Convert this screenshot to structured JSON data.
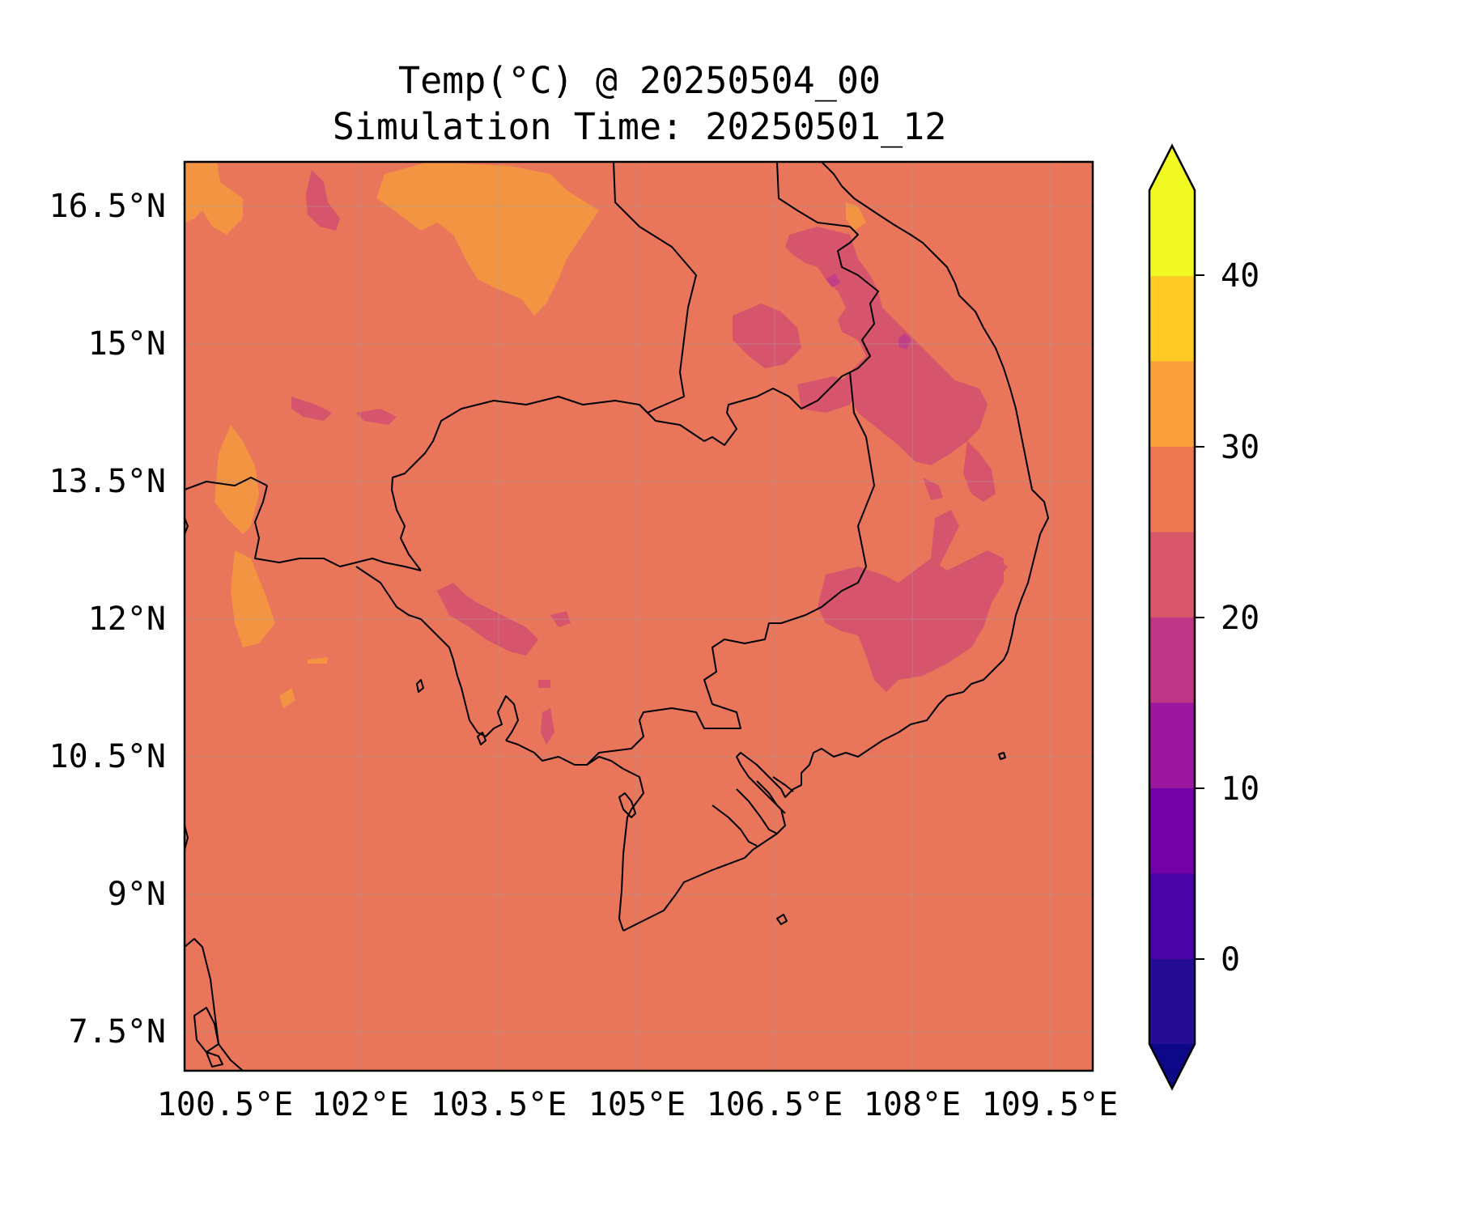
{
  "title": {
    "line1": "Temp(°C) @ 20250504_00",
    "line2": "Simulation Time: 20250501_12"
  },
  "map": {
    "lon_ticks": [
      "100.5°E",
      "102°E",
      "103.5°E",
      "105°E",
      "106.5°E",
      "108°E",
      "109.5°E"
    ],
    "lat_ticks": [
      "16.5°N",
      "15°N",
      "13.5°N",
      "12°N",
      "10.5°N",
      "9°N",
      "7.5°N"
    ],
    "background_field_color": "#e9755a",
    "coastline_color": "#000000",
    "gridlines": true
  },
  "colorbar": {
    "ticks": [
      "40",
      "30",
      "20",
      "10",
      "0"
    ],
    "levels": [
      -5,
      0,
      5,
      10,
      15,
      20,
      25,
      30,
      35,
      40,
      45
    ],
    "colormap": "plasma",
    "extend": "both",
    "colors": [
      "#240c94",
      "#4a03a4",
      "#7201a8",
      "#9c179e",
      "#bd3786",
      "#d8576b",
      "#ed7953",
      "#fb9f3a",
      "#fdca26",
      "#f0f921"
    ]
  },
  "legend_colors": {
    "low_extension": "#0d0887",
    "high_extension": "#f0f921"
  }
}
